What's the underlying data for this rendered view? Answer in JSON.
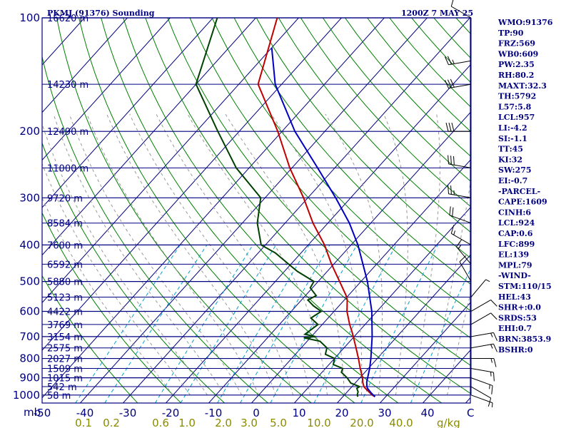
{
  "header": {
    "station": "PKMJ (91376) Sounding",
    "time": "1200Z  7 MAY 25"
  },
  "indices": [
    "WMO:91376",
    "TP:90",
    "FRZ:569",
    "WB0:609",
    "PW:2.35",
    "RH:80.2",
    "MAXT:32.3",
    "TH:5792",
    "L57:5.8",
    "LCL:957",
    "LI:-4.2",
    "SI:-1.1",
    "TT:45",
    "KI:32",
    "SW:275",
    "EI:-0.7",
    "-PARCEL-",
    "CAPE:1609",
    "CINH:6",
    "LCL:924",
    "CAP:0.6",
    "LFC:899",
    "EL:139",
    "MPL:79",
    "-WIND-",
    "STM:110/15",
    "HEL:43",
    "SHR+:0.0",
    "SRDS:53",
    "EHI:0.7",
    "BRN:3853.9",
    "BSHR:0"
  ],
  "colors": {
    "axis": "#000080",
    "isobar": "#000080",
    "isotherm": "#000080",
    "dry_adiabat": "#008000",
    "moist_adiabat": "#00b000",
    "mixing_ratio": "#00a0d0",
    "temperature": "#c00000",
    "dewpoint": "#004000",
    "parcel": "#0000c0",
    "background_dash": "#999999",
    "mixing_label": "#8b8b00"
  },
  "chart_data": {
    "type": "line",
    "title": "PKMJ (91376) Sounding",
    "ylabel": "mb",
    "xunit": "C",
    "wunit": "g/kg",
    "pressure_levels": [
      100,
      200,
      300,
      400,
      500,
      600,
      700,
      800,
      900,
      1000
    ],
    "pressure_labels": [
      "100",
      "200",
      "300",
      "400",
      "500",
      "600",
      "700",
      "800",
      "900",
      "1000"
    ],
    "height_labels": [
      {
        "p": 100,
        "label": "16620 m"
      },
      {
        "p": 150,
        "label": "14230 m"
      },
      {
        "p": 200,
        "label": "12490 m"
      },
      {
        "p": 250,
        "label": "11000 m"
      },
      {
        "p": 300,
        "label": "9720 m"
      },
      {
        "p": 350,
        "label": "8584 m"
      },
      {
        "p": 400,
        "label": "7600 m"
      },
      {
        "p": 450,
        "label": "6592 m"
      },
      {
        "p": 500,
        "label": "5880 m"
      },
      {
        "p": 550,
        "label": "5123 m"
      },
      {
        "p": 600,
        "label": "4422 m"
      },
      {
        "p": 650,
        "label": "3769 m"
      },
      {
        "p": 700,
        "label": "3154 m"
      },
      {
        "p": 750,
        "label": "2575 m"
      },
      {
        "p": 800,
        "label": "2027 m"
      },
      {
        "p": 850,
        "label": "1509 m"
      },
      {
        "p": 900,
        "label": "1015 m"
      },
      {
        "p": 950,
        "label": "542 m"
      },
      {
        "p": 1000,
        "label": "58 m"
      }
    ],
    "temperature_ticks": [
      "-50",
      "-40",
      "-30",
      "-20",
      "-10",
      "0",
      "10",
      "20",
      "30",
      "40"
    ],
    "temperature_range": [
      -50,
      50
    ],
    "mixing_ratio_ticks": [
      "0.1",
      "0.2",
      "0.6",
      "1.0",
      "2.0",
      "3.0",
      "5.0",
      "10.0",
      "20.0",
      "40.0"
    ],
    "mixing_ratio_values": [
      0.1,
      0.2,
      0.6,
      1.0,
      2.0,
      3.0,
      5.0,
      10.0,
      20.0,
      40.0
    ],
    "ylim": [
      100,
      1050
    ],
    "series": [
      {
        "key": "temperature",
        "points": [
          [
            1010,
            27.5
          ],
          [
            1000,
            26.5
          ],
          [
            980,
            25.0
          ],
          [
            960,
            23.5
          ],
          [
            950,
            22.8
          ],
          [
            925,
            21.6
          ],
          [
            900,
            20.6
          ],
          [
            850,
            18.1
          ],
          [
            800,
            15.6
          ],
          [
            750,
            12.8
          ],
          [
            700,
            9.8
          ],
          [
            680,
            8.5
          ],
          [
            650,
            6.4
          ],
          [
            600,
            3.0
          ],
          [
            560,
            0.7
          ],
          [
            545,
            -0.5
          ],
          [
            500,
            -5.0
          ],
          [
            450,
            -10.5
          ],
          [
            400,
            -16.2
          ],
          [
            350,
            -23.5
          ],
          [
            300,
            -31.0
          ],
          [
            250,
            -40.5
          ],
          [
            200,
            -51.0
          ],
          [
            150,
            -65.5
          ],
          [
            100,
            -75.0
          ]
        ]
      },
      {
        "key": "dewpoint",
        "points": [
          [
            1010,
            23.5
          ],
          [
            1000,
            23.0
          ],
          [
            980,
            22.5
          ],
          [
            960,
            21.5
          ],
          [
            950,
            21.8
          ],
          [
            930,
            19.0
          ],
          [
            900,
            17.0
          ],
          [
            870,
            14.5
          ],
          [
            850,
            14.0
          ],
          [
            830,
            11.0
          ],
          [
            800,
            10.0
          ],
          [
            780,
            7.0
          ],
          [
            750,
            6.0
          ],
          [
            720,
            3.0
          ],
          [
            705,
            -1.5
          ],
          [
            700,
            1.0
          ],
          [
            690,
            -2.0
          ],
          [
            670,
            -1.5
          ],
          [
            650,
            -1.0
          ],
          [
            625,
            -4.0
          ],
          [
            600,
            -3.0
          ],
          [
            580,
            -6.0
          ],
          [
            560,
            -8.5
          ],
          [
            545,
            -7.5
          ],
          [
            520,
            -10.5
          ],
          [
            500,
            -11.0
          ],
          [
            470,
            -17.0
          ],
          [
            450,
            -20.5
          ],
          [
            420,
            -26.0
          ],
          [
            400,
            -31.0
          ],
          [
            350,
            -36.5
          ],
          [
            300,
            -41.0
          ],
          [
            250,
            -53.0
          ],
          [
            200,
            -65.0
          ],
          [
            150,
            -80.0
          ],
          [
            100,
            -89.0
          ]
        ]
      },
      {
        "key": "parcel",
        "points": [
          [
            1010,
            27.5
          ],
          [
            990,
            26.0
          ],
          [
            960,
            24.0
          ],
          [
            950,
            23.5
          ],
          [
            924,
            22.5
          ],
          [
            900,
            21.8
          ],
          [
            850,
            20.3
          ],
          [
            800,
            18.5
          ],
          [
            700,
            14.2
          ],
          [
            600,
            8.8
          ],
          [
            500,
            1.5
          ],
          [
            400,
            -8.4
          ],
          [
            350,
            -15.0
          ],
          [
            300,
            -23.5
          ],
          [
            250,
            -34.0
          ],
          [
            200,
            -47.0
          ],
          [
            150,
            -61.5
          ],
          [
            120,
            -70.0
          ]
        ]
      }
    ],
    "winds": [
      {
        "p": 1000,
        "dir": 110,
        "spd": 5
      },
      {
        "p": 950,
        "dir": 120,
        "spd": 10
      },
      {
        "p": 900,
        "dir": 110,
        "spd": 15
      },
      {
        "p": 850,
        "dir": 100,
        "spd": 15
      },
      {
        "p": 800,
        "dir": 90,
        "spd": 15
      },
      {
        "p": 750,
        "dir": 80,
        "spd": 15
      },
      {
        "p": 700,
        "dir": 80,
        "spd": 15
      },
      {
        "p": 650,
        "dir": 60,
        "spd": 10
      },
      {
        "p": 600,
        "dir": 60,
        "spd": 10
      },
      {
        "p": 550,
        "dir": 40,
        "spd": 5
      },
      {
        "p": 500,
        "dir": 330,
        "spd": 10
      },
      {
        "p": 450,
        "dir": 320,
        "spd": 15
      },
      {
        "p": 400,
        "dir": 300,
        "spd": 15
      },
      {
        "p": 350,
        "dir": 290,
        "spd": 20
      },
      {
        "p": 300,
        "dir": 280,
        "spd": 25
      },
      {
        "p": 250,
        "dir": 280,
        "spd": 30
      },
      {
        "p": 200,
        "dir": 270,
        "spd": 30
      },
      {
        "p": 150,
        "dir": 260,
        "spd": 30
      },
      {
        "p": 130,
        "dir": 260,
        "spd": 25
      },
      {
        "p": 100,
        "dir": 300,
        "spd": 10
      }
    ]
  }
}
